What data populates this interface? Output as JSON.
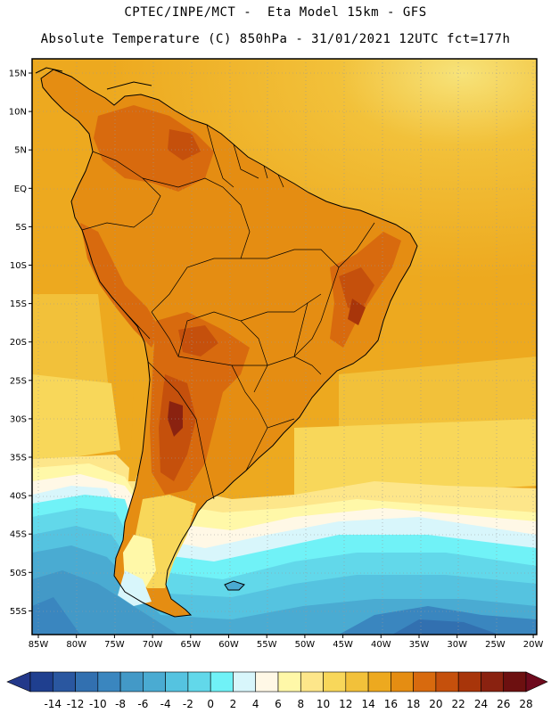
{
  "header": {
    "line1": "CPTEC/INPE/MCT -  Eta Model 15km - GFS",
    "line2": "Absolute Temperature (C) 850hPa - 31/01/2021 12UTC fct=177h"
  },
  "axes": {
    "lat_labels": [
      "15N",
      "10N",
      "5N",
      "EQ",
      "5S",
      "10S",
      "15S",
      "20S",
      "25S",
      "30S",
      "35S",
      "40S",
      "45S",
      "50S",
      "55S"
    ],
    "lon_labels": [
      "85W",
      "80W",
      "75W",
      "70W",
      "65W",
      "60W",
      "55W",
      "50W",
      "45W",
      "40W",
      "35W",
      "30W",
      "25W",
      "20W"
    ]
  },
  "colorbar": {
    "labels": [
      "-14",
      "-12",
      "-10",
      "-8",
      "-6",
      "-4",
      "-2",
      "0",
      "2",
      "4",
      "6",
      "8",
      "10",
      "12",
      "14",
      "16",
      "18",
      "20",
      "22",
      "24",
      "26",
      "28"
    ],
    "colors": [
      "#1f3f8f",
      "#2a57a0",
      "#3270b0",
      "#3a86bf",
      "#4399c7",
      "#4aabd2",
      "#55c3e0",
      "#62d8ea",
      "#70f2f7",
      "#d8f6fb",
      "#fff8e6",
      "#fff8a8",
      "#fde68a",
      "#f8d75a",
      "#f2c13a",
      "#eda91f",
      "#e58d12",
      "#d86a0e",
      "#c5500c",
      "#a8350a",
      "#8a2210",
      "#6d1010"
    ],
    "under_color": "#23388a",
    "over_color": "#6e0a1d"
  }
}
